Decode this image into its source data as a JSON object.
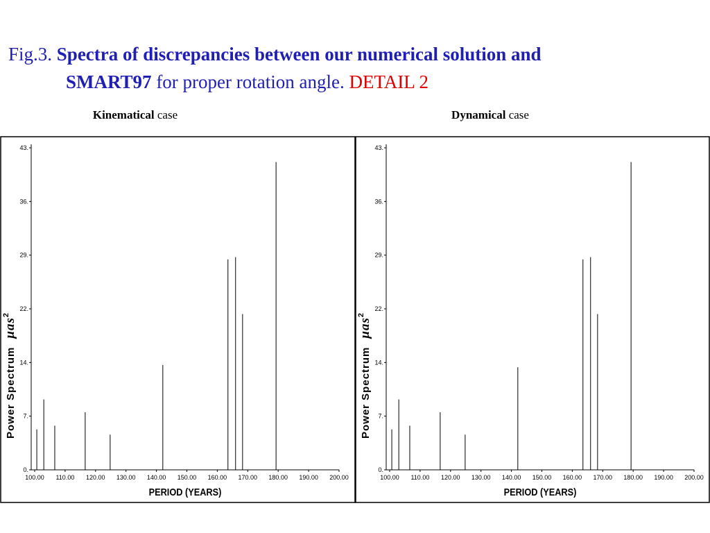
{
  "header": {
    "fig": "Fig.3.",
    "bold": "Spectra of discrepancies between our numerical solution and",
    "bold2": "SMART97",
    "rest": "for proper rotation angle.",
    "detail": "DETAIL  2"
  },
  "chart_data": [
    {
      "type": "stem",
      "title_bold": "Kinematical",
      "title_rest": "case",
      "xlabel": "PERIOD (YEARS)",
      "ylabel": "Power Spectrum",
      "yunit": "μas",
      "yunit_power": "2",
      "x": [
        100.7,
        103,
        106.6,
        116.6,
        124.8,
        142.1,
        163.5,
        166,
        168.3,
        179.3
      ],
      "values": [
        5.4,
        9.4,
        5.9,
        7.7,
        4.7,
        14.0,
        28.1,
        28.4,
        20.8,
        41.1
      ],
      "color": "#000000",
      "xlim": [
        100,
        200
      ],
      "ylim": [
        0,
        43
      ],
      "xticks": [
        {
          "value": 100,
          "label": "100.00"
        },
        {
          "value": 110,
          "label": "110.00"
        },
        {
          "value": 120,
          "label": "120.00"
        },
        {
          "value": 130,
          "label": "130.00"
        },
        {
          "value": 140,
          "label": "140.00"
        },
        {
          "value": 150,
          "label": "150.00"
        },
        {
          "value": 160,
          "label": "160.00"
        },
        {
          "value": 170,
          "label": "170.00"
        },
        {
          "value": 180,
          "label": "180.00"
        },
        {
          "value": 190,
          "label": "190.00"
        },
        {
          "value": 200,
          "label": "200.00"
        }
      ],
      "yticks": [
        {
          "value": 0,
          "label": "0."
        },
        {
          "value": 7.17,
          "label": "7."
        },
        {
          "value": 14.33,
          "label": "14."
        },
        {
          "value": 21.5,
          "label": "22."
        },
        {
          "value": 28.67,
          "label": "29."
        },
        {
          "value": 35.83,
          "label": "36."
        },
        {
          "value": 43,
          "label": "43."
        }
      ]
    },
    {
      "type": "stem",
      "title_bold": "Dynamical",
      "title_rest": "case",
      "xlabel": "PERIOD (YEARS)",
      "ylabel": "Power Spectrum",
      "yunit": "μas",
      "yunit_power": "2",
      "x": [
        100.7,
        103,
        106.6,
        116.6,
        124.8,
        142.1,
        163.5,
        166,
        168.3,
        179.3
      ],
      "values": [
        5.4,
        9.4,
        5.9,
        7.7,
        4.7,
        13.7,
        28.1,
        28.4,
        20.8,
        41.1
      ],
      "color": "#000000",
      "xlim": [
        100,
        200
      ],
      "ylim": [
        0,
        43
      ],
      "xticks": [
        {
          "value": 100,
          "label": "100.00"
        },
        {
          "value": 110,
          "label": "110.00"
        },
        {
          "value": 120,
          "label": "120.00"
        },
        {
          "value": 130,
          "label": "130.00"
        },
        {
          "value": 140,
          "label": "140.00"
        },
        {
          "value": 150,
          "label": "150.00"
        },
        {
          "value": 160,
          "label": "160.00"
        },
        {
          "value": 170,
          "label": "170.00"
        },
        {
          "value": 180,
          "label": "180.00"
        },
        {
          "value": 190,
          "label": "190.00"
        },
        {
          "value": 200,
          "label": "200.00"
        }
      ],
      "yticks": [
        {
          "value": 0,
          "label": "0."
        },
        {
          "value": 7.17,
          "label": "7."
        },
        {
          "value": 14.33,
          "label": "14."
        },
        {
          "value": 21.5,
          "label": "22."
        },
        {
          "value": 28.67,
          "label": "29."
        },
        {
          "value": 35.83,
          "label": "36."
        },
        {
          "value": 43,
          "label": "43."
        }
      ]
    }
  ]
}
